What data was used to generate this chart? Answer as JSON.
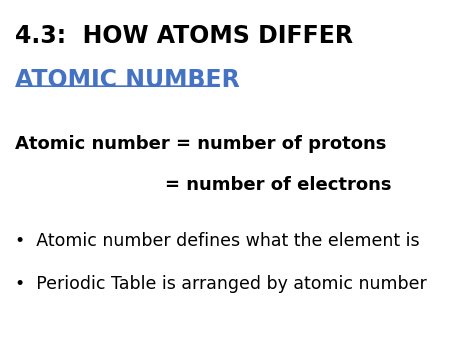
{
  "background_color": "#ffffff",
  "title_line1": "4.3:  HOW ATOMS DIFFER",
  "title_line2": "ATOMIC NUMBER",
  "title_line1_color": "#000000",
  "title_line2_color": "#4472C4",
  "title_line1_fontsize": 17,
  "title_line2_fontsize": 17,
  "body_line1": "Atomic number = number of protons",
  "body_line2": "                        = number of electrons",
  "body_fontsize": 13,
  "body_color": "#000000",
  "bullet1": "Atomic number defines what the element is",
  "bullet2": "Periodic Table is arranged by atomic number",
  "bullet_fontsize": 12.5,
  "bullet_color": "#000000",
  "bullet_symbol": "•"
}
